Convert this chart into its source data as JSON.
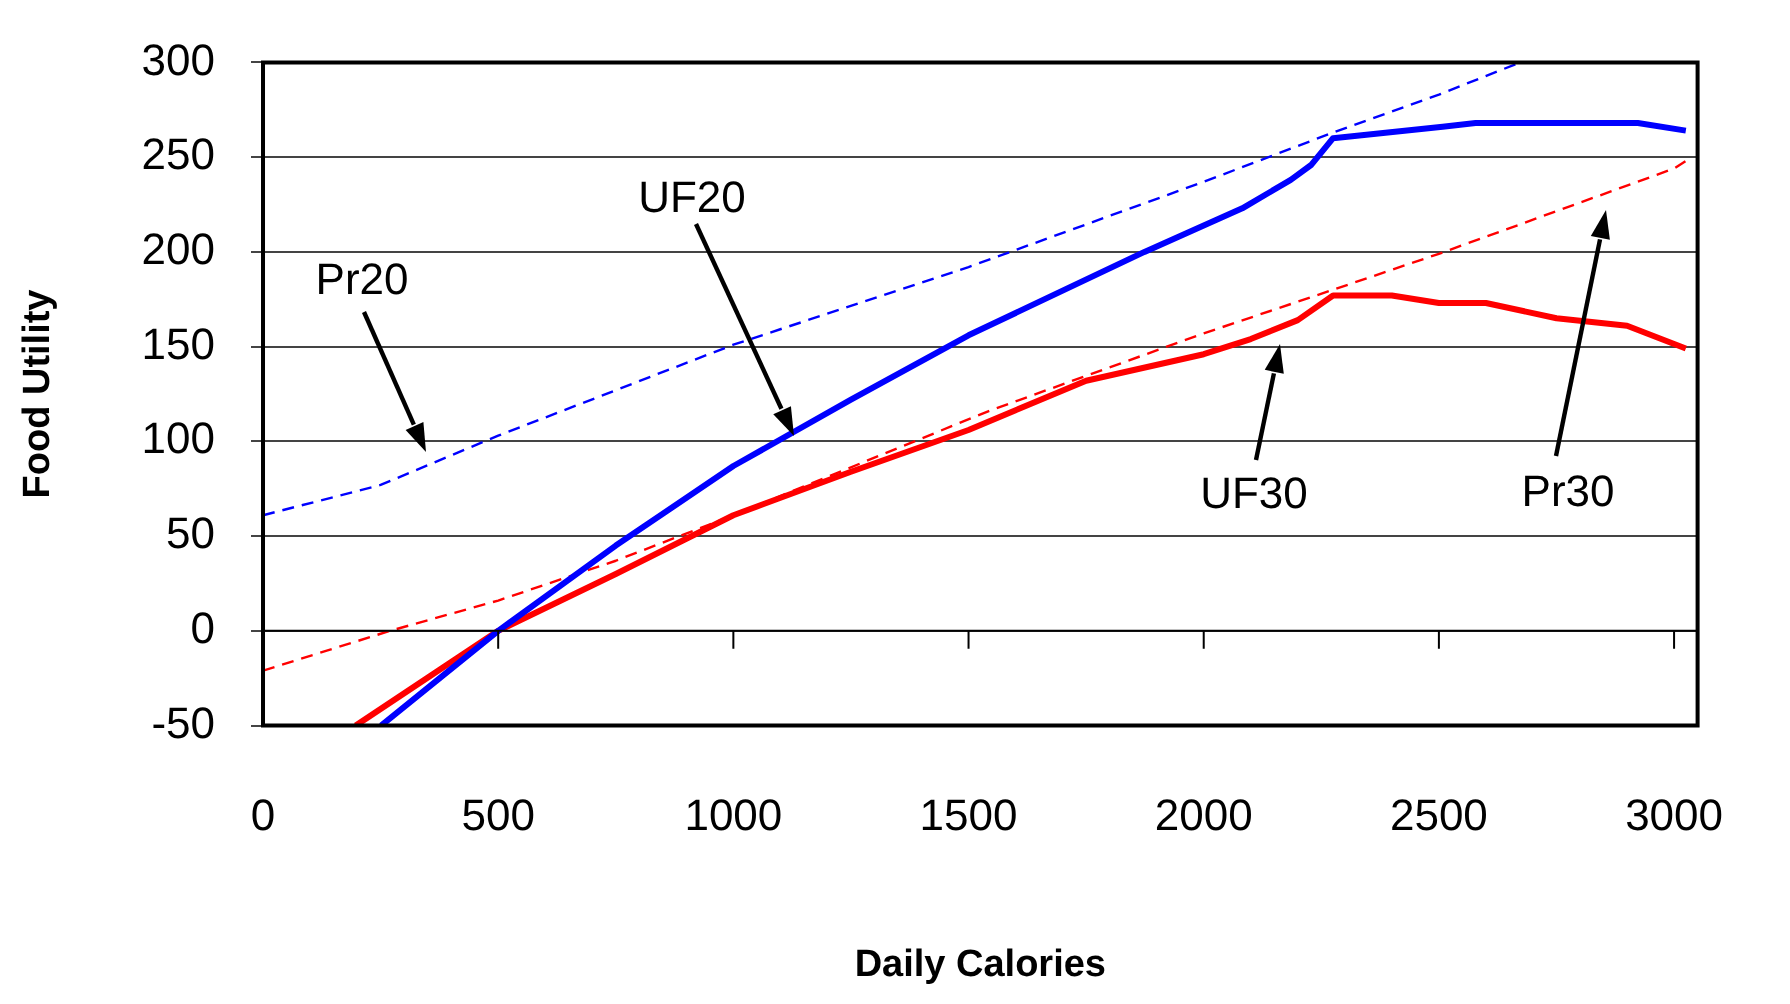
{
  "chart_data": {
    "type": "line",
    "xlabel": "Daily Calories",
    "ylabel": "Food Utility",
    "xlim": [
      0,
      3050
    ],
    "xticks": [
      0,
      500,
      1000,
      1500,
      2000,
      2500,
      3000
    ],
    "ylim": [
      -50,
      300
    ],
    "yticks": [
      -50,
      0,
      50,
      100,
      150,
      200,
      250,
      300
    ],
    "grid": "y",
    "marker": "none",
    "series": [
      {
        "color": "#0000ff",
        "line_style": "dashed",
        "x": [
          0,
          250,
          500,
          1000,
          1500,
          2000,
          2275,
          2500,
          2673
        ],
        "values": [
          61,
          77,
          103,
          151,
          192,
          237,
          263,
          283,
          300
        ]
      },
      {
        "color": "#0000ff",
        "line_style": "solid",
        "x": [
          251,
          500,
          750,
          1000,
          1250,
          1500,
          1874,
          2082,
          2185,
          2229,
          2275,
          2508,
          2578,
          2923,
          3025
        ],
        "values": [
          -50,
          0,
          45,
          87,
          122,
          156,
          200,
          223,
          238,
          246,
          260,
          266,
          268,
          268,
          264
        ]
      },
      {
        "color": "#ff0000",
        "line_style": "dashed",
        "x": [
          0,
          270,
          500,
          750,
          1000,
          1543,
          2000,
          2275,
          2500,
          3000,
          3025
        ],
        "values": [
          -21,
          0,
          16,
          37,
          61,
          116,
          157,
          180,
          199,
          244,
          248
        ]
      },
      {
        "color": "#ff0000",
        "line_style": "solid",
        "x": [
          197,
          500,
          750,
          1000,
          1250,
          1500,
          1750,
          2000,
          2100,
          2200,
          2275,
          2400,
          2500,
          2600,
          2750,
          2900,
          3025
        ],
        "values": [
          -50,
          0,
          30,
          61,
          84,
          106,
          132,
          146,
          154,
          164,
          177,
          177,
          173,
          173,
          165,
          161,
          149
        ]
      }
    ],
    "annotations": [
      "Pr20",
      "UF20",
      "UF30",
      "Pr30"
    ]
  }
}
